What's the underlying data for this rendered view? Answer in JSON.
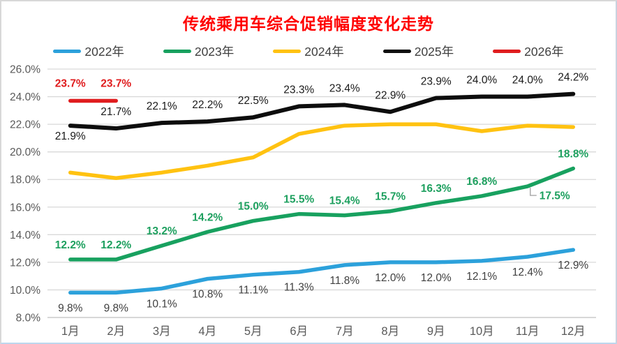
{
  "window": {
    "background": "#FFFFFF",
    "border_color": "#BDD7EE"
  },
  "title": {
    "text": "传统乘用车综合促销幅度变化走势",
    "color": "#FF0000"
  },
  "axis_colors": {
    "tick_label": "#595959",
    "gridline": "#D9D9D9",
    "axis_line": "#BFBFBF"
  },
  "chart_data": {
    "type": "line",
    "title": "传统乘用车综合促销幅度变化走势",
    "title_color": "#FF0000",
    "categories": [
      "1月",
      "2月",
      "3月",
      "4月",
      "5月",
      "6月",
      "7月",
      "8月",
      "9月",
      "10月",
      "11月",
      "12月"
    ],
    "unit": "%",
    "xlabel": "",
    "ylabel": "",
    "ylim": [
      8,
      26
    ],
    "ytick_step": 2,
    "ytick_labels": [
      "26.0%",
      "24.0%",
      "22.0%",
      "20.0%",
      "18.0%",
      "16.0%",
      "14.0%",
      "12.0%",
      "10.0%",
      "8.0%"
    ],
    "grid": true,
    "legend_position": "top",
    "series": [
      {
        "name": "2022年",
        "color": "#2CA1DB",
        "values": [
          9.8,
          9.8,
          10.1,
          10.8,
          11.1,
          11.3,
          11.8,
          12.0,
          12.0,
          12.1,
          12.4,
          12.9
        ],
        "show_labels": true,
        "label_color": "#404040",
        "label_bold": false,
        "label_side": "below"
      },
      {
        "name": "2023年",
        "color": "#18A15F",
        "values": [
          12.2,
          12.2,
          13.2,
          14.2,
          15.0,
          15.5,
          15.4,
          15.7,
          16.3,
          16.8,
          17.5,
          18.8
        ],
        "show_labels": true,
        "label_color": "#1EA05F",
        "label_bold": true,
        "label_side": "above",
        "label_overrides": {
          "10": "callout"
        }
      },
      {
        "name": "2024年",
        "color": "#FFC211",
        "values": [
          18.5,
          18.1,
          18.5,
          19.0,
          19.6,
          21.3,
          21.9,
          22.0,
          22.0,
          21.5,
          21.9,
          21.8
        ],
        "show_labels": false
      },
      {
        "name": "2025年",
        "color": "#0D0D0D",
        "values": [
          21.9,
          21.7,
          22.1,
          22.2,
          22.5,
          23.3,
          23.4,
          22.9,
          23.9,
          24.0,
          24.0,
          24.2
        ],
        "show_labels": true,
        "label_color": "#1A1A1A",
        "label_bold": false,
        "label_side": "above",
        "label_overrides": {
          "0": "below"
        }
      },
      {
        "name": "2026年",
        "color": "#E01D1F",
        "values": [
          23.7,
          23.7
        ],
        "show_labels": true,
        "label_color": "#E01D1F",
        "label_bold": true,
        "label_side": "above"
      }
    ],
    "callout_color": "#A6A6A6"
  }
}
